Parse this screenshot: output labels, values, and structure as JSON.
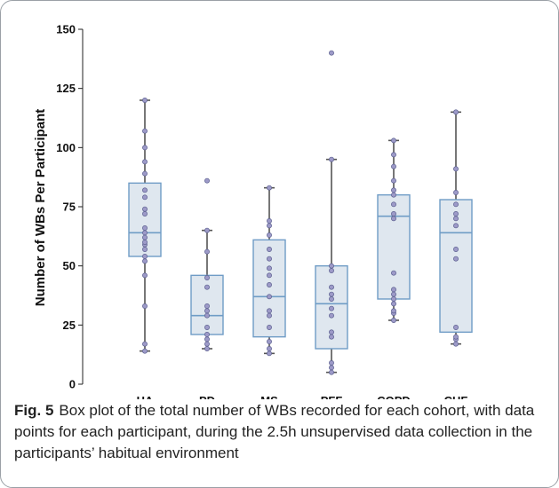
{
  "chart_data": {
    "type": "box",
    "title": "",
    "xlabel": "",
    "ylabel": "Number of WBs Per Participant",
    "ylim": [
      0,
      150
    ],
    "yticks": [
      0,
      25,
      50,
      75,
      100,
      125,
      150
    ],
    "grid": false,
    "legend": "none",
    "colors": {
      "box_fill": "#dfe7ef",
      "box_stroke": "#6f9cc6",
      "whisker": "#555555",
      "point_fill": "#9d9ac8",
      "point_stroke": "#5b5f8f"
    },
    "categories": [
      "HA",
      "PD",
      "MS",
      "PFF",
      "COPD",
      "CHF"
    ],
    "boxes": [
      {
        "category": "HA",
        "whisker_low": 14,
        "q1": 54,
        "median": 64,
        "q3": 85,
        "whisker_high": 120,
        "points": [
          14,
          17,
          33,
          46,
          52,
          54,
          57,
          59,
          60,
          62,
          64,
          66,
          72,
          74,
          79,
          82,
          89,
          94,
          100,
          107,
          120
        ]
      },
      {
        "category": "PD",
        "whisker_low": 15,
        "q1": 21,
        "median": 29,
        "q3": 46,
        "whisker_high": 65,
        "points": [
          15,
          17,
          19,
          21,
          24,
          29,
          31,
          33,
          41,
          45,
          56,
          65,
          86
        ]
      },
      {
        "category": "MS",
        "whisker_low": 13,
        "q1": 20,
        "median": 37,
        "q3": 61,
        "whisker_high": 83,
        "points": [
          13,
          15,
          18,
          24,
          29,
          31,
          37,
          42,
          46,
          49,
          53,
          57,
          63,
          67,
          69,
          83
        ]
      },
      {
        "category": "PFF",
        "whisker_low": 5,
        "q1": 15,
        "median": 34,
        "q3": 50,
        "whisker_high": 95,
        "points": [
          5,
          7,
          9,
          20,
          22,
          29,
          32,
          36,
          38,
          41,
          48,
          50,
          95,
          140
        ]
      },
      {
        "category": "COPD",
        "whisker_low": 27,
        "q1": 36,
        "median": 71,
        "q3": 80,
        "whisker_high": 103,
        "points": [
          27,
          30,
          31,
          34,
          36,
          38,
          40,
          47,
          70,
          72,
          76,
          80,
          82,
          86,
          92,
          97,
          103
        ]
      },
      {
        "category": "CHF",
        "whisker_low": 17,
        "q1": 22,
        "median": 64,
        "q3": 78,
        "whisker_high": 115,
        "points": [
          17,
          19,
          20,
          24,
          53,
          57,
          67,
          70,
          72,
          76,
          81,
          91,
          115
        ]
      }
    ]
  },
  "caption": {
    "label": "Fig. 5",
    "text": "Box plot of the total number of WBs recorded for each cohort, with data points for each participant, during the 2.5h unsupervised data collection in the participants’ habitual environment"
  }
}
